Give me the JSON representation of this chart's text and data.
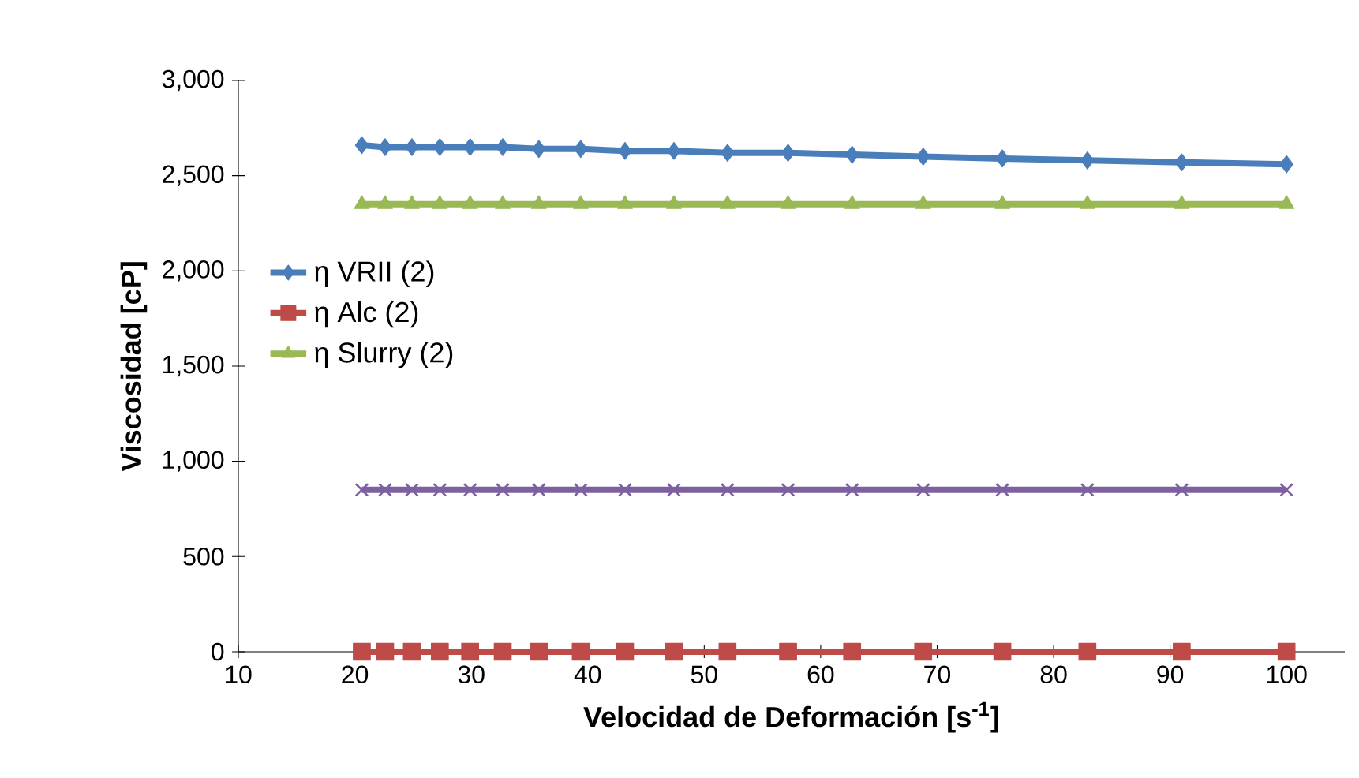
{
  "chart_data": {
    "type": "line",
    "xlabel": "Velocidad de Deformación [s$^{-1}$]",
    "ylabel": "Viscosidad [cP]",
    "x": [
      20.6,
      22.6,
      24.9,
      27.3,
      29.9,
      32.7,
      35.8,
      39.4,
      43.2,
      47.4,
      52.0,
      57.2,
      62.7,
      68.8,
      75.6,
      82.9,
      91.0,
      100.0
    ],
    "series": [
      {
        "name": "η VRII (2)",
        "color": "#4a7ebb",
        "marker": "diamond",
        "values": [
          2660,
          2650,
          2650,
          2650,
          2650,
          2650,
          2640,
          2640,
          2630,
          2630,
          2620,
          2620,
          2610,
          2600,
          2590,
          2580,
          2570,
          2560
        ]
      },
      {
        "name": "η Alc (2)",
        "color": "#be4b48",
        "marker": "square",
        "values": [
          0,
          0,
          0,
          0,
          0,
          0,
          0,
          0,
          0,
          0,
          0,
          0,
          0,
          0,
          0,
          0,
          0,
          0
        ]
      },
      {
        "name": "η Slurry (2)",
        "color": "#98b954",
        "marker": "triangle",
        "values": [
          2350,
          2350,
          2350,
          2350,
          2350,
          2350,
          2350,
          2350,
          2350,
          2350,
          2350,
          2350,
          2350,
          2350,
          2350,
          2350,
          2350,
          2350
        ]
      },
      {
        "color": "#7d60a0",
        "marker": "cross",
        "values": [
          850,
          850,
          850,
          850,
          850,
          850,
          850,
          850,
          850,
          850,
          850,
          850,
          850,
          850,
          850,
          850,
          850,
          850
        ]
      }
    ],
    "xlim": [
      10,
      105
    ],
    "xticks": [
      10,
      20,
      30,
      40,
      50,
      60,
      70,
      80,
      90,
      100
    ],
    "ylim": [
      0,
      3000
    ],
    "yticks": [
      0,
      500,
      {
        "value": 1000,
        "label": "1,000"
      },
      {
        "value": 1500,
        "label": "1,500"
      },
      {
        "value": 2000,
        "label": "2,000"
      },
      {
        "value": 2500,
        "label": "2,500"
      },
      {
        "value": 3000,
        "label": "3,000"
      }
    ],
    "grid": false,
    "legend": "left",
    "line_style": "solid"
  }
}
